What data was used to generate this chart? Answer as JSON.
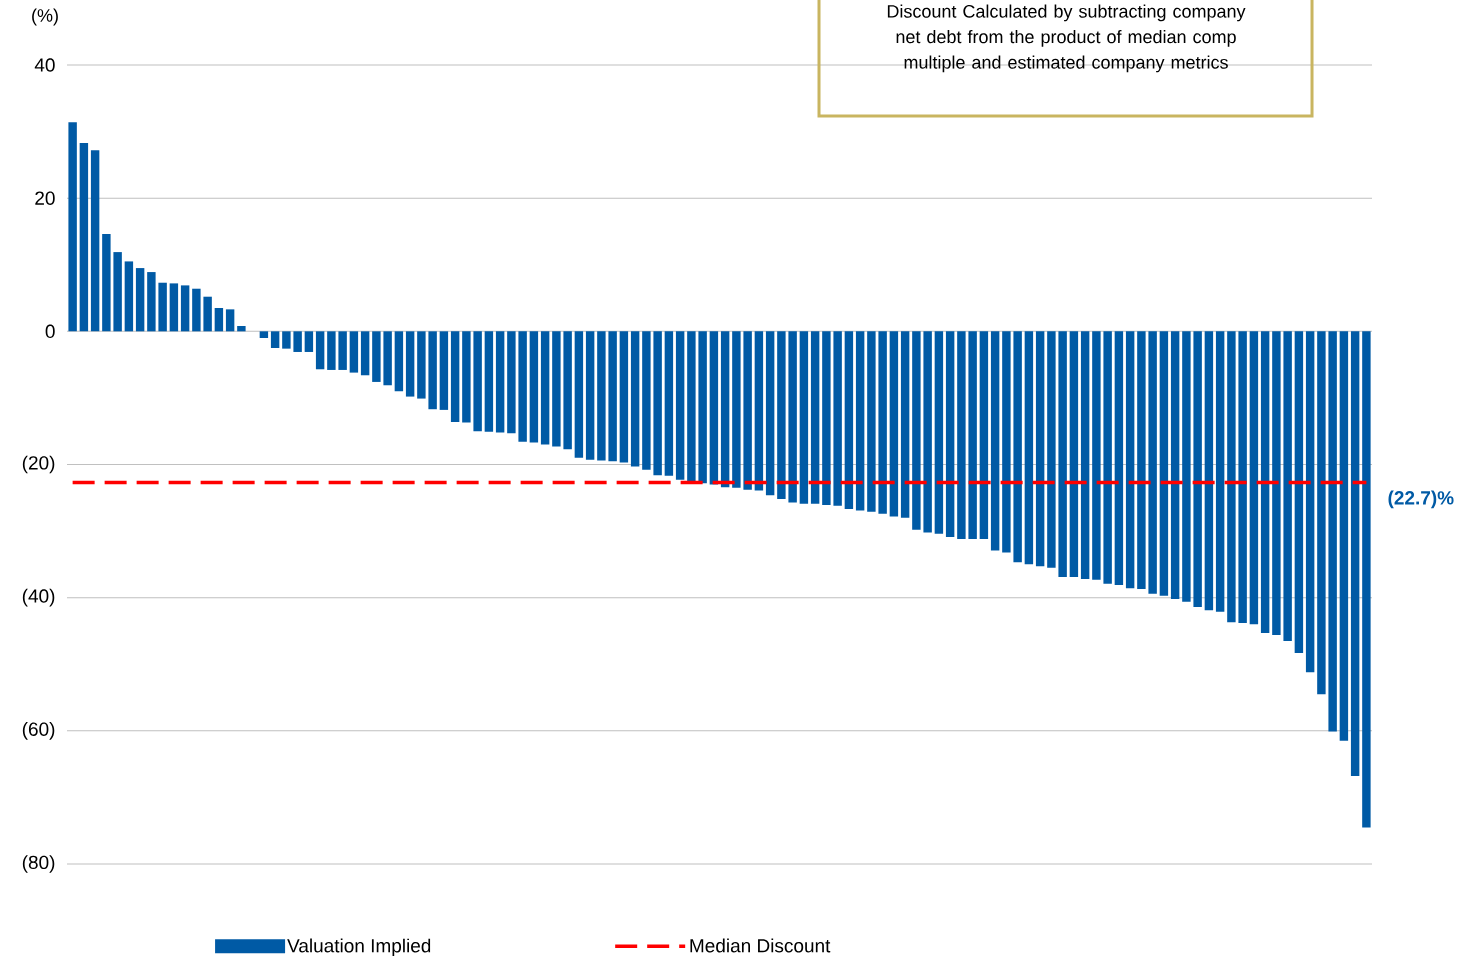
{
  "chart_data": {
    "type": "bar",
    "ylabel": "(%)",
    "categories": [
      null,
      null,
      null,
      null,
      null,
      null,
      null,
      null,
      null,
      null,
      null,
      null,
      null,
      null,
      null,
      null,
      null,
      null,
      null,
      null,
      null,
      null,
      null,
      null,
      null,
      null,
      null,
      null,
      null,
      null,
      null,
      null,
      null,
      null,
      null,
      null,
      null,
      null,
      null,
      null,
      null,
      null,
      null,
      null,
      null,
      null,
      null,
      null,
      null,
      null,
      null,
      null,
      null,
      null,
      null,
      null,
      null,
      null,
      null,
      null,
      null,
      null,
      null,
      null,
      null,
      null,
      null,
      null,
      null,
      null,
      null,
      null,
      null,
      null,
      null,
      null,
      null,
      null,
      null,
      null,
      null,
      null,
      null,
      null,
      null,
      null,
      null,
      null,
      null,
      null,
      null,
      null,
      null,
      null,
      null,
      null,
      null,
      null,
      null,
      null,
      null,
      null,
      null,
      null,
      null,
      null,
      null,
      null,
      null,
      null,
      null,
      null,
      null,
      null,
      null,
      null
    ],
    "series": [
      {
        "name": "Valuation Implied",
        "color": "#005aa5",
        "values": [
          31.4,
          28.3,
          27.2,
          14.6,
          11.9,
          10.5,
          9.5,
          8.9,
          7.3,
          7.2,
          6.9,
          6.4,
          5.2,
          3.5,
          3.3,
          0.8,
          0,
          -1.0,
          -2.5,
          -2.6,
          -3.1,
          -3.1,
          -5.7,
          -5.8,
          -5.8,
          -6.2,
          -6.6,
          -7.6,
          -8.1,
          -9.0,
          -9.8,
          -10.1,
          -11.7,
          -11.8,
          -13.6,
          -13.7,
          -15.0,
          -15.1,
          -15.2,
          -15.3,
          -16.6,
          -16.7,
          -17.0,
          -17.3,
          -17.7,
          -19.0,
          -19.3,
          -19.4,
          -19.5,
          -19.7,
          -20.3,
          -20.8,
          -21.6,
          -21.7,
          -22.3,
          -22.5,
          -22.8,
          -23.0,
          -23.4,
          -23.5,
          -23.8,
          -23.9,
          -24.6,
          -25.2,
          -25.7,
          -25.9,
          -25.9,
          -26.1,
          -26.2,
          -26.7,
          -26.9,
          -27.1,
          -27.4,
          -27.8,
          -28.0,
          -29.8,
          -30.2,
          -30.4,
          -30.9,
          -31.2,
          -31.2,
          -31.2,
          -32.9,
          -33.2,
          -34.7,
          -35.0,
          -35.3,
          -35.5,
          -36.9,
          -36.9,
          -37.2,
          -37.3,
          -37.9,
          -38.1,
          -38.6,
          -38.7,
          -39.4,
          -39.7,
          -40.2,
          -40.6,
          -41.4,
          -41.9,
          -42.1,
          -43.7,
          -43.8,
          -44.0,
          -45.3,
          -45.6,
          -46.5,
          -48.3,
          -51.2,
          -54.5,
          -60.1,
          -61.5,
          -66.8,
          -74.5
        ]
      },
      {
        "name": "Median Discount",
        "type": "line",
        "color": "#ff0000",
        "line_style": "dashed",
        "values": [
          -22.7,
          -22.7,
          -22.7,
          -22.7,
          -22.7,
          -22.7,
          -22.7,
          -22.7,
          -22.7,
          -22.7,
          -22.7,
          -22.7,
          -22.7,
          -22.7,
          -22.7,
          -22.7,
          -22.7,
          -22.7,
          -22.7,
          -22.7,
          -22.7,
          -22.7,
          -22.7,
          -22.7,
          -22.7,
          -22.7,
          -22.7,
          -22.7,
          -22.7,
          -22.7,
          -22.7,
          -22.7,
          -22.7,
          -22.7,
          -22.7,
          -22.7,
          -22.7,
          -22.7,
          -22.7,
          -22.7,
          -22.7,
          -22.7,
          -22.7,
          -22.7,
          -22.7,
          -22.7,
          -22.7,
          -22.7,
          -22.7,
          -22.7,
          -22.7,
          -22.7,
          -22.7,
          -22.7,
          -22.7,
          -22.7,
          -22.7,
          -22.7,
          -22.7,
          -22.7,
          -22.7,
          -22.7,
          -22.7,
          -22.7,
          -22.7,
          -22.7,
          -22.7,
          -22.7,
          -22.7,
          -22.7,
          -22.7,
          -22.7,
          -22.7,
          -22.7,
          -22.7,
          -22.7,
          -22.7,
          -22.7,
          -22.7,
          -22.7,
          -22.7,
          -22.7,
          -22.7,
          -22.7,
          -22.7,
          -22.7,
          -22.7,
          -22.7,
          -22.7,
          -22.7,
          -22.7,
          -22.7,
          -22.7,
          -22.7,
          -22.7,
          -22.7,
          -22.7,
          -22.7,
          -22.7,
          -22.7,
          -22.7,
          -22.7,
          -22.7,
          -22.7,
          -22.7,
          -22.7,
          -22.7,
          -22.7,
          -22.7,
          -22.7,
          -22.7,
          -22.7,
          -22.7,
          -22.7,
          -22.7,
          -22.7
        ]
      }
    ],
    "ylim": [
      -80,
      40
    ],
    "yticks": [
      {
        "value": -80,
        "label": "(80)"
      },
      {
        "value": -60,
        "label": "(60)"
      },
      {
        "value": -40,
        "label": "(40)"
      },
      {
        "value": -20,
        "label": "(20)"
      },
      0,
      20,
      40
    ],
    "grid": "y",
    "legend": "bottom",
    "tick_labels": "y",
    "annotations": [
      "Discount Calculated by subtracting company net debt from the product of median comp multiple and estimated company metrics",
      "(22.7)%"
    ]
  }
}
